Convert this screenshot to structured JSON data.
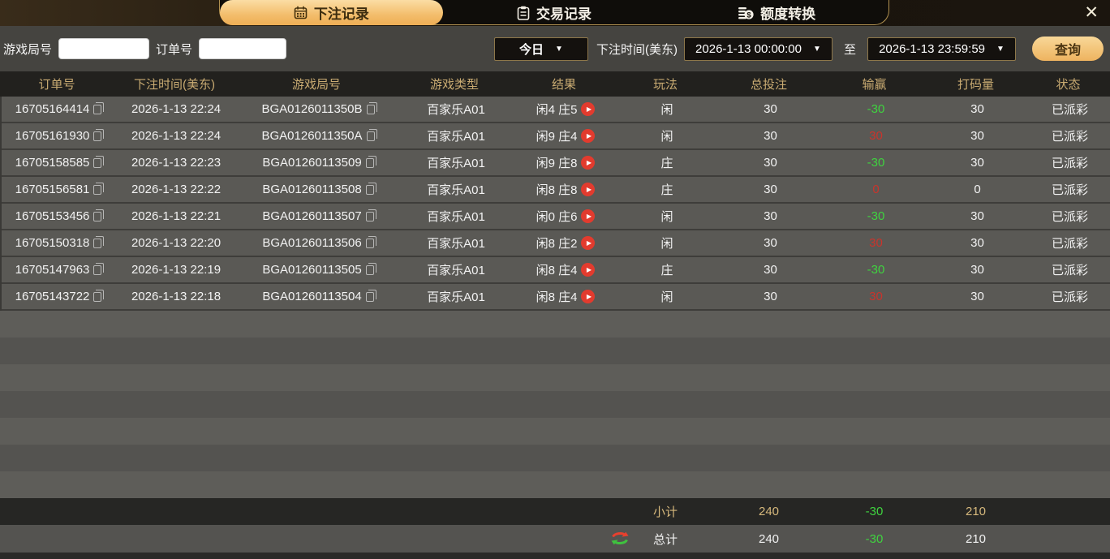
{
  "window": {
    "close_label": "✕"
  },
  "tabs": [
    {
      "label": "下注记录",
      "icon": "calendar-icon",
      "active": true
    },
    {
      "label": "交易记录",
      "icon": "clipboard-icon",
      "active": false
    },
    {
      "label": "额度转换",
      "icon": "coins-icon",
      "active": false
    }
  ],
  "filters": {
    "game_round_label": "游戏局号",
    "game_round_value": "",
    "order_no_label": "订单号",
    "order_no_value": "",
    "range_select": "今日",
    "bet_time_label": "下注时间(美东)",
    "start_time": "2026-1-13 00:00:00",
    "to_label": "至",
    "end_time": "2026-1-13 23:59:59",
    "query_button": "查询"
  },
  "table": {
    "headers": [
      "订单号",
      "下注时间(美东)",
      "游戏局号",
      "游戏类型",
      "结果",
      "玩法",
      "总投注",
      "输赢",
      "打码量",
      "状态"
    ],
    "rows": [
      {
        "order_no": "16705164414",
        "bet_time": "2026-1-13 22:24",
        "game_round": "BGA0126011350B",
        "game_type": "百家乐A01",
        "result": "闲4 庄5",
        "play": "闲",
        "total_bet": "30",
        "win_loss": "-30",
        "win_loss_color": "green",
        "turnover": "30",
        "status": "已派彩"
      },
      {
        "order_no": "16705161930",
        "bet_time": "2026-1-13 22:24",
        "game_round": "BGA0126011350A",
        "game_type": "百家乐A01",
        "result": "闲9 庄4",
        "play": "闲",
        "total_bet": "30",
        "win_loss": "30",
        "win_loss_color": "red",
        "turnover": "30",
        "status": "已派彩"
      },
      {
        "order_no": "16705158585",
        "bet_time": "2026-1-13 22:23",
        "game_round": "BGA01260113509",
        "game_type": "百家乐A01",
        "result": "闲9 庄8",
        "play": "庄",
        "total_bet": "30",
        "win_loss": "-30",
        "win_loss_color": "green",
        "turnover": "30",
        "status": "已派彩"
      },
      {
        "order_no": "16705156581",
        "bet_time": "2026-1-13 22:22",
        "game_round": "BGA01260113508",
        "game_type": "百家乐A01",
        "result": "闲8 庄8",
        "play": "庄",
        "total_bet": "30",
        "win_loss": "0",
        "win_loss_color": "red",
        "turnover": "0",
        "status": "已派彩"
      },
      {
        "order_no": "16705153456",
        "bet_time": "2026-1-13 22:21",
        "game_round": "BGA01260113507",
        "game_type": "百家乐A01",
        "result": "闲0 庄6",
        "play": "闲",
        "total_bet": "30",
        "win_loss": "-30",
        "win_loss_color": "green",
        "turnover": "30",
        "status": "已派彩"
      },
      {
        "order_no": "16705150318",
        "bet_time": "2026-1-13 22:20",
        "game_round": "BGA01260113506",
        "game_type": "百家乐A01",
        "result": "闲8 庄2",
        "play": "闲",
        "total_bet": "30",
        "win_loss": "30",
        "win_loss_color": "red",
        "turnover": "30",
        "status": "已派彩"
      },
      {
        "order_no": "16705147963",
        "bet_time": "2026-1-13 22:19",
        "game_round": "BGA01260113505",
        "game_type": "百家乐A01",
        "result": "闲8 庄4",
        "play": "庄",
        "total_bet": "30",
        "win_loss": "-30",
        "win_loss_color": "green",
        "turnover": "30",
        "status": "已派彩"
      },
      {
        "order_no": "16705143722",
        "bet_time": "2026-1-13 22:18",
        "game_round": "BGA01260113504",
        "game_type": "百家乐A01",
        "result": "闲8 庄4",
        "play": "闲",
        "total_bet": "30",
        "win_loss": "30",
        "win_loss_color": "red",
        "turnover": "30",
        "status": "已派彩"
      }
    ],
    "subtotal": {
      "label": "小计",
      "total_bet": "240",
      "win_loss": "-30",
      "turnover": "210"
    },
    "total": {
      "label": "总计",
      "total_bet": "240",
      "win_loss": "-30",
      "turnover": "210"
    }
  },
  "colors": {
    "accent_gold": "#f0b95f",
    "header_text": "#c9ab72",
    "win_red": "#c9342c",
    "loss_green": "#3fd33f"
  }
}
